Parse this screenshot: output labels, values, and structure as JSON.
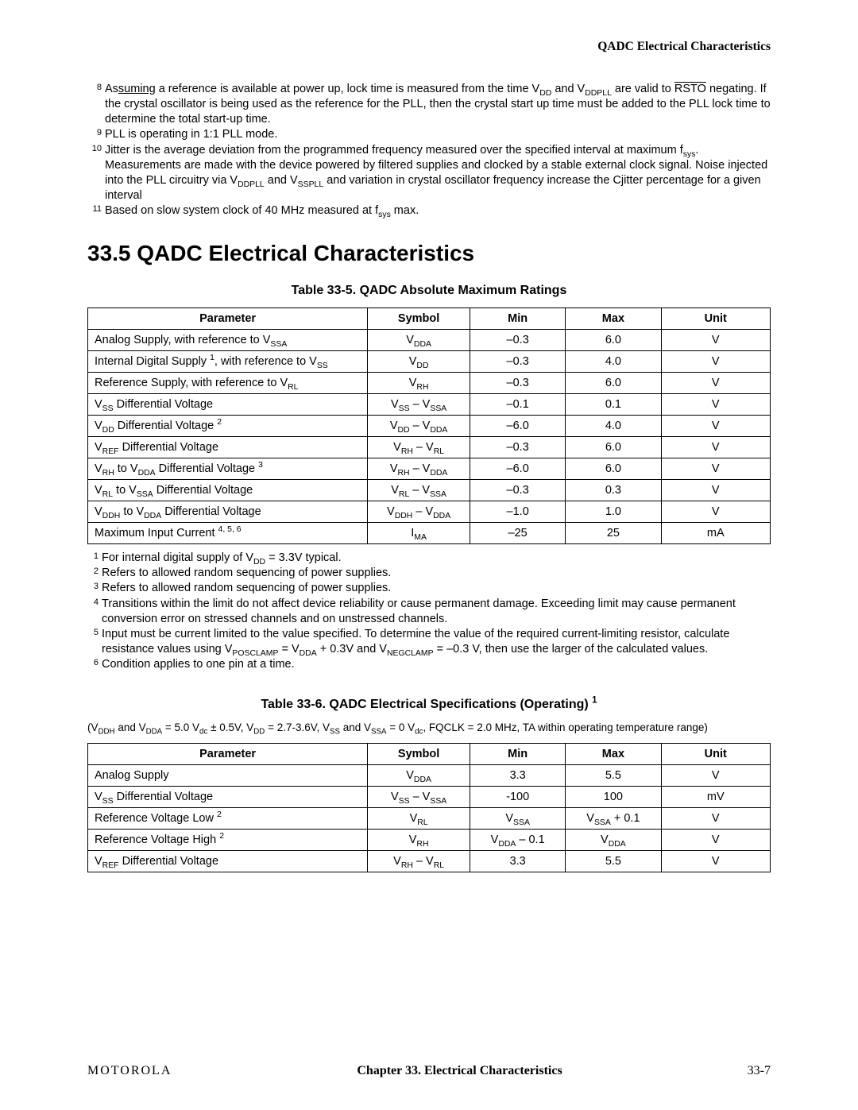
{
  "header": {
    "title": "QADC Electrical Characteristics"
  },
  "topFootnotes": {
    "n8": "8",
    "t8a": "As",
    "t8under": "suming",
    "t8b": " a reference is available at power up, lock time is measured from the time V",
    "t8sub1": "DD",
    "t8c": " and V",
    "t8sub2": "DDPLL",
    "t8d": " are valid to ",
    "t8over": "RSTO",
    "t8e": " negating. If the crystal oscillator is being used as the reference for the PLL, then the crystal start up time must be added to the PLL lock time to determine the total start-up time.",
    "n9": "9",
    "t9": "PLL is operating in 1:1 PLL mode.",
    "n10": "10",
    "t10a": "Jitter is the average deviation from the programmed frequency measured over the specified interval at maximum f",
    "t10sub1": "sys",
    "t10b": ". Measurements are made with the device powered by filtered supplies and clocked by a stable external clock signal. Noise injected into the PLL circuitry via V",
    "t10sub2": "DDPLL",
    "t10c": " and V",
    "t10sub3": "SSPLL",
    "t10d": " and variation in crystal oscillator frequency increase the Cjitter percentage for a given interval",
    "n11": "11",
    "t11a": "Based on slow system clock of 40 MHz measured at f",
    "t11sub": "sys",
    "t11b": " max."
  },
  "section": {
    "heading": "33.5  QADC Electrical Characteristics"
  },
  "table1": {
    "title": "Table 33-5. QADC Absolute Maximum Ratings",
    "headers": {
      "param": "Parameter",
      "symbol": "Symbol",
      "min": "Min",
      "max": "Max",
      "unit": "Unit"
    },
    "rows": [
      {
        "paramA": "Analog Supply, with reference to V",
        "paramSub": "SSA",
        "paramB": "",
        "symA": "V",
        "symSub": "DDA",
        "symB": "",
        "min": "–0.3",
        "max": "6.0",
        "unit": "V"
      },
      {
        "paramA": "Internal Digital Supply ",
        "paramSup": "1",
        "paramB": ", with reference to V",
        "paramSub2": "SS",
        "symA": "V",
        "symSub": "DD",
        "symB": "",
        "min": "–0.3",
        "max": "4.0",
        "unit": "V"
      },
      {
        "paramA": "Reference Supply, with reference to V",
        "paramSub": "RL",
        "paramB": "",
        "symA": "V",
        "symSub": "RH",
        "symB": "",
        "min": "–0.3",
        "max": "6.0",
        "unit": "V"
      },
      {
        "paramA": "V",
        "paramSub": "SS",
        "paramB": " Differential Voltage",
        "symA": "V",
        "symSub": "SS",
        "symB": " – V",
        "symSub2": "SSA",
        "min": "–0.1",
        "max": "0.1",
        "unit": "V"
      },
      {
        "paramA": "V",
        "paramSub": "DD",
        "paramB": " Differential Voltage ",
        "paramSup2": "2",
        "symA": "V",
        "symSub": "DD",
        "symB": " – V",
        "symSub2": "DDA",
        "min": "–6.0",
        "max": "4.0",
        "unit": "V"
      },
      {
        "paramA": "V",
        "paramSub": "REF",
        "paramB": " Differential Voltage",
        "symA": "V",
        "symSub": "RH",
        "symB": " – V",
        "symSub2": "RL",
        "min": "–0.3",
        "max": "6.0",
        "unit": "V"
      },
      {
        "paramA": "V",
        "paramSub": "RH",
        "paramB": " to V",
        "paramSub2": "DDA",
        "paramC": " Differential Voltage ",
        "paramSup2": "3",
        "symA": "V",
        "symSub": "RH",
        "symB": " – V",
        "symSub2": "DDA",
        "min": "–6.0",
        "max": "6.0",
        "unit": "V"
      },
      {
        "paramA": "V",
        "paramSub": "RL",
        "paramB": " to V",
        "paramSub2": "SSA",
        "paramC": " Differential Voltage",
        "symA": "V",
        "symSub": "RL",
        "symB": " – V",
        "symSub2": "SSA",
        "min": "–0.3",
        "max": "0.3",
        "unit": "V"
      },
      {
        "paramA": "V",
        "paramSub": "DDH",
        "paramB": " to V",
        "paramSub2": "DDA",
        "paramC": " Differential Voltage",
        "symA": "V",
        "symSub": "DDH",
        "symB": " – V",
        "symSub2": "DDA",
        "min": "–1.0",
        "max": "1.0",
        "unit": "V"
      },
      {
        "paramA": "Maximum Input Current ",
        "paramSup": "4, 5, 6",
        "symA": "I",
        "symSub": "MA",
        "min": "–25",
        "max": "25",
        "unit": "mA"
      }
    ]
  },
  "midFootnotes": {
    "n1": "1",
    "t1a": "For internal digital supply of V",
    "t1sub": "DD",
    "t1b": " = 3.3V typical.",
    "n2": "2",
    "t2": "Refers to allowed random sequencing of power supplies.",
    "n3": "3",
    "t3": "Refers to allowed random sequencing of power supplies.",
    "n4": "4",
    "t4": "Transitions within the limit do not affect device reliability or cause permanent damage. Exceeding limit may cause permanent conversion error on stressed channels and on unstressed channels.",
    "n5": "5",
    "t5a": "Input must be current limited to the value specified. To determine the value of the required current-limiting resistor, calculate resistance values using V",
    "t5sub1": "POSCLAMP",
    "t5b": " = V",
    "t5sub2": "DDA",
    "t5c": " + 0.3V and V",
    "t5sub3": "NEGCLAMP",
    "t5d": " = –0.3 V, then use the larger of the calculated values.",
    "n6": "6",
    "t6": "Condition applies to one pin at a time."
  },
  "table2": {
    "titleA": "Table 33-6. QADC Electrical Specifications (Operating) ",
    "titleSup": "1",
    "condA": "(V",
    "condSub1": "DDH",
    "condB": " and V",
    "condSub2": "DDA",
    "condC": " = 5.0 V",
    "condSub3": "dc",
    "condD": " ± 0.5V, V",
    "condSub4": "DD",
    "condE": " = 2.7-3.6V, V",
    "condSub5": "SS",
    "condF": " and V",
    "condSub6": "SSA",
    "condG": " = 0 V",
    "condSub7": "dc",
    "condH": ", FQCLK = 2.0 MHz, TA within operating temperature range)",
    "headers": {
      "param": "Parameter",
      "symbol": "Symbol",
      "min": "Min",
      "max": "Max",
      "unit": "Unit"
    },
    "rows": [
      {
        "paramA": "Analog Supply",
        "symA": "V",
        "symSub": "DDA",
        "min": "3.3",
        "max": "5.5",
        "unit": "V"
      },
      {
        "paramA": "V",
        "paramSub": "SS",
        "paramB": " Differential Voltage",
        "symA": "V",
        "symSub": "SS",
        "symB": " – V",
        "symSub2": "SSA",
        "min": "-100",
        "max": "100",
        "unit": "mV"
      },
      {
        "paramA": "Reference Voltage Low ",
        "paramSup": "2",
        "symA": "V",
        "symSub": "RL",
        "minA": "V",
        "minSub": "SSA",
        "maxA": "V",
        "maxSub": "SSA",
        "maxB": " + 0.1",
        "unit": "V"
      },
      {
        "paramA": "Reference Voltage High ",
        "paramSup": "2",
        "symA": "V",
        "symSub": "RH",
        "minA": "V",
        "minSub": "DDA",
        "minB": " – 0.1",
        "maxA": "V",
        "maxSub": "DDA",
        "unit": "V"
      },
      {
        "paramA": "V",
        "paramSub": "REF",
        "paramB": " Differential Voltage",
        "symA": "V",
        "symSub": "RH",
        "symB": " – V",
        "symSub2": "RL",
        "min": "3.3",
        "max": "5.5",
        "unit": "V"
      }
    ]
  },
  "footer": {
    "brand": "MOTOROLA",
    "chapter": "Chapter 33.  Electrical Characteristics",
    "page": "33-7"
  }
}
